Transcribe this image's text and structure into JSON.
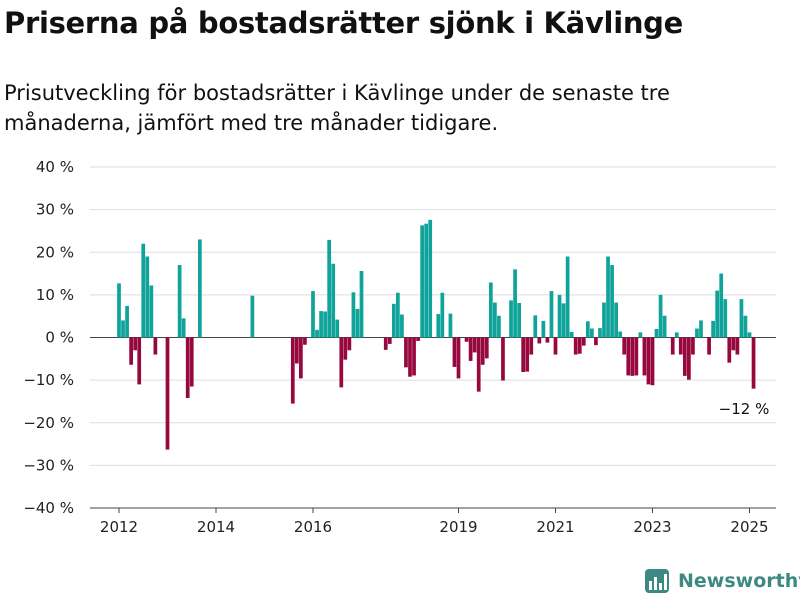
{
  "header": {
    "title": "Priserna på bostadsrätter sjönk i Kävlinge",
    "subtitle": "Prisutveckling för bostadsrätter i Kävlinge under de senaste tre månaderna, jämfört med tre månader tidigare."
  },
  "brand": {
    "name": "Newsworthy",
    "icon": "newsworthy-logo-icon"
  },
  "colors": {
    "positive": "#0fa39a",
    "negative": "#96083e",
    "grid": "#dddddd",
    "axis": "#444444",
    "brand": "#3d8a82"
  },
  "chart_data": {
    "type": "bar",
    "x_unit": "month",
    "x_ticks": [
      {
        "x": "2012-01",
        "label": "2012"
      },
      {
        "x": "2014-01",
        "label": "2014"
      },
      {
        "x": "2016-01",
        "label": "2016"
      },
      {
        "x": "2019-01",
        "label": "2019"
      },
      {
        "x": "2021-01",
        "label": "2021"
      },
      {
        "x": "2023-01",
        "label": "2023"
      },
      {
        "x": "2025-01",
        "label": "2025"
      }
    ],
    "y_ticks": [
      {
        "value": 40,
        "label": "40 %"
      },
      {
        "value": 30,
        "label": "30 %"
      },
      {
        "value": 20,
        "label": "20 %"
      },
      {
        "value": 10,
        "label": "10 %"
      },
      {
        "value": 0,
        "label": "0 %"
      },
      {
        "value": -10,
        "label": "−10 %"
      },
      {
        "value": -20,
        "label": "−20 %"
      },
      {
        "value": -30,
        "label": "−30 %"
      },
      {
        "value": -40,
        "label": "−40 %"
      }
    ],
    "ylim": [
      -40,
      40
    ],
    "grid": true,
    "last_value_label": "−12 %",
    "series": [
      {
        "points": [
          {
            "x": "2012-01",
            "value": 12.7
          },
          {
            "x": "2012-02",
            "value": 4.0
          },
          {
            "x": "2012-03",
            "value": 7.4
          },
          {
            "x": "2012-04",
            "value": -6.4
          },
          {
            "x": "2012-05",
            "value": -3.0
          },
          {
            "x": "2012-06",
            "value": -11.0
          },
          {
            "x": "2012-07",
            "value": 22.0
          },
          {
            "x": "2012-08",
            "value": 19.0
          },
          {
            "x": "2012-09",
            "value": 12.2
          },
          {
            "x": "2012-10",
            "value": -4.0
          },
          {
            "x": "2013-01",
            "value": -26.3
          },
          {
            "x": "2013-04",
            "value": 17.0
          },
          {
            "x": "2013-05",
            "value": 4.5
          },
          {
            "x": "2013-06",
            "value": -14.2
          },
          {
            "x": "2013-07",
            "value": -11.5
          },
          {
            "x": "2013-09",
            "value": 23.0
          },
          {
            "x": "2014-10",
            "value": 9.8
          },
          {
            "x": "2015-08",
            "value": -15.5
          },
          {
            "x": "2015-09",
            "value": -6.1
          },
          {
            "x": "2015-10",
            "value": -9.6
          },
          {
            "x": "2015-11",
            "value": -1.7
          },
          {
            "x": "2016-01",
            "value": 10.9
          },
          {
            "x": "2016-02",
            "value": 1.8
          },
          {
            "x": "2016-03",
            "value": 6.2
          },
          {
            "x": "2016-04",
            "value": 6.1
          },
          {
            "x": "2016-05",
            "value": 22.9
          },
          {
            "x": "2016-06",
            "value": 17.3
          },
          {
            "x": "2016-07",
            "value": 4.2
          },
          {
            "x": "2016-08",
            "value": -11.7
          },
          {
            "x": "2016-09",
            "value": -5.2
          },
          {
            "x": "2016-10",
            "value": -3.0
          },
          {
            "x": "2016-11",
            "value": 10.6
          },
          {
            "x": "2016-12",
            "value": 6.7
          },
          {
            "x": "2017-01",
            "value": 15.6
          },
          {
            "x": "2017-07",
            "value": -2.9
          },
          {
            "x": "2017-08",
            "value": -1.5
          },
          {
            "x": "2017-09",
            "value": 7.9
          },
          {
            "x": "2017-10",
            "value": 10.5
          },
          {
            "x": "2017-11",
            "value": 5.4
          },
          {
            "x": "2017-12",
            "value": -7.0
          },
          {
            "x": "2018-01",
            "value": -9.2
          },
          {
            "x": "2018-02",
            "value": -8.9
          },
          {
            "x": "2018-03",
            "value": -0.8
          },
          {
            "x": "2018-04",
            "value": 26.3
          },
          {
            "x": "2018-05",
            "value": 26.7
          },
          {
            "x": "2018-06",
            "value": 27.6
          },
          {
            "x": "2018-08",
            "value": 5.5
          },
          {
            "x": "2018-09",
            "value": 10.5
          },
          {
            "x": "2018-11",
            "value": 5.6
          },
          {
            "x": "2018-12",
            "value": -6.9
          },
          {
            "x": "2019-01",
            "value": -9.6
          },
          {
            "x": "2019-03",
            "value": -1.0
          },
          {
            "x": "2019-04",
            "value": -5.5
          },
          {
            "x": "2019-05",
            "value": -3.5
          },
          {
            "x": "2019-06",
            "value": -12.7
          },
          {
            "x": "2019-07",
            "value": -6.4
          },
          {
            "x": "2019-08",
            "value": -4.9
          },
          {
            "x": "2019-09",
            "value": 12.9
          },
          {
            "x": "2019-10",
            "value": 8.2
          },
          {
            "x": "2019-11",
            "value": 5.1
          },
          {
            "x": "2019-12",
            "value": -10.1
          },
          {
            "x": "2020-02",
            "value": 8.7
          },
          {
            "x": "2020-03",
            "value": 16.0
          },
          {
            "x": "2020-04",
            "value": 8.1
          },
          {
            "x": "2020-05",
            "value": -8.1
          },
          {
            "x": "2020-06",
            "value": -8.0
          },
          {
            "x": "2020-07",
            "value": -4.0
          },
          {
            "x": "2020-08",
            "value": 5.2
          },
          {
            "x": "2020-09",
            "value": -1.4
          },
          {
            "x": "2020-10",
            "value": 3.9
          },
          {
            "x": "2020-11",
            "value": -1.2
          },
          {
            "x": "2020-12",
            "value": 10.9
          },
          {
            "x": "2021-01",
            "value": -4.0
          },
          {
            "x": "2021-02",
            "value": 10.0
          },
          {
            "x": "2021-03",
            "value": 8.0
          },
          {
            "x": "2021-04",
            "value": 19.0
          },
          {
            "x": "2021-05",
            "value": 1.3
          },
          {
            "x": "2021-06",
            "value": -4.0
          },
          {
            "x": "2021-07",
            "value": -3.8
          },
          {
            "x": "2021-08",
            "value": -1.9
          },
          {
            "x": "2021-09",
            "value": 3.8
          },
          {
            "x": "2021-10",
            "value": 2.1
          },
          {
            "x": "2021-11",
            "value": -1.8
          },
          {
            "x": "2021-12",
            "value": 2.2
          },
          {
            "x": "2022-01",
            "value": 8.2
          },
          {
            "x": "2022-02",
            "value": 19.0
          },
          {
            "x": "2022-03",
            "value": 17.0
          },
          {
            "x": "2022-04",
            "value": 8.2
          },
          {
            "x": "2022-05",
            "value": 1.4
          },
          {
            "x": "2022-06",
            "value": -4.0
          },
          {
            "x": "2022-07",
            "value": -8.9
          },
          {
            "x": "2022-08",
            "value": -9.0
          },
          {
            "x": "2022-09",
            "value": -8.9
          },
          {
            "x": "2022-10",
            "value": 1.2
          },
          {
            "x": "2022-11",
            "value": -8.9
          },
          {
            "x": "2022-12",
            "value": -11.0
          },
          {
            "x": "2023-01",
            "value": -11.2
          },
          {
            "x": "2023-02",
            "value": 2.0
          },
          {
            "x": "2023-03",
            "value": 10.0
          },
          {
            "x": "2023-04",
            "value": 5.1
          },
          {
            "x": "2023-06",
            "value": -4.0
          },
          {
            "x": "2023-07",
            "value": 1.2
          },
          {
            "x": "2023-08",
            "value": -4.0
          },
          {
            "x": "2023-09",
            "value": -9.0
          },
          {
            "x": "2023-10",
            "value": -9.9
          },
          {
            "x": "2023-11",
            "value": -4.0
          },
          {
            "x": "2023-12",
            "value": 2.1
          },
          {
            "x": "2024-01",
            "value": 4.0
          },
          {
            "x": "2024-03",
            "value": -4.0
          },
          {
            "x": "2024-04",
            "value": 3.9
          },
          {
            "x": "2024-05",
            "value": 11.0
          },
          {
            "x": "2024-06",
            "value": 15.0
          },
          {
            "x": "2024-07",
            "value": 9.0
          },
          {
            "x": "2024-08",
            "value": -5.9
          },
          {
            "x": "2024-09",
            "value": -3.0
          },
          {
            "x": "2024-10",
            "value": -4.0
          },
          {
            "x": "2024-11",
            "value": 9.0
          },
          {
            "x": "2024-12",
            "value": 5.1
          },
          {
            "x": "2025-01",
            "value": 1.2
          },
          {
            "x": "2025-02",
            "value": -12.0
          }
        ]
      }
    ]
  }
}
